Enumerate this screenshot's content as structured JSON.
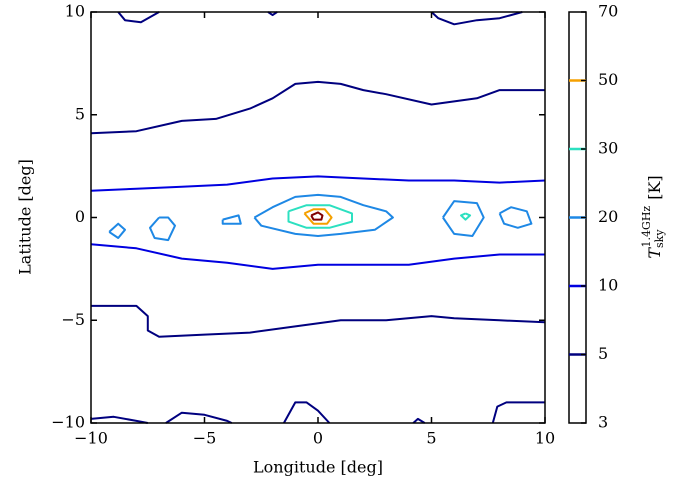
{
  "chart_data": {
    "type": "contour",
    "xlabel": "Longitude [deg]",
    "ylabel": "Latitude [deg]",
    "xlim": [
      -10,
      10
    ],
    "ylim": [
      -10,
      10
    ],
    "xticks": [
      {
        "value": -10,
        "label": "−10"
      },
      {
        "value": -5,
        "label": "−5"
      },
      0,
      5,
      10
    ],
    "yticks": [
      {
        "value": -10,
        "label": "−10"
      },
      {
        "value": -5,
        "label": "−5"
      },
      0,
      5,
      10
    ],
    "colorbar": {
      "symbol": "T",
      "subscript": "sky",
      "superscript": "1.4GHz",
      "unit": "[K]",
      "ticks": [
        3,
        5,
        10,
        20,
        30,
        50,
        70
      ]
    },
    "levels": [
      5,
      10,
      20,
      30,
      50,
      70
    ],
    "level_colors": [
      "#00007f",
      "#0000e0",
      "#1e88e5",
      "#2ce0c0",
      "#f5a000",
      "#800000"
    ],
    "contours": [
      {
        "level": 5,
        "x": [
          -10,
          -8,
          -6,
          -4.5,
          -3,
          -2,
          -1,
          0,
          1,
          2,
          3,
          5,
          7,
          8,
          10
        ],
        "y": [
          4.1,
          4.2,
          4.7,
          4.8,
          5.3,
          5.8,
          6.5,
          6.6,
          6.5,
          6.2,
          6.0,
          5.5,
          5.8,
          6.2,
          6.2
        ]
      },
      {
        "level": 5,
        "x": [
          -8.8,
          -8.5,
          -7.8,
          -7
        ],
        "y": [
          10,
          9.6,
          9.5,
          10
        ]
      },
      {
        "level": 5,
        "x": [
          -2.2,
          -2,
          -1.8
        ],
        "y": [
          10,
          9.85,
          10
        ]
      },
      {
        "level": 5,
        "x": [
          5,
          5.3,
          6,
          7,
          8,
          9
        ],
        "y": [
          10,
          9.7,
          9.4,
          9.6,
          9.7,
          10
        ]
      },
      {
        "level": 5,
        "x": [
          -10,
          -8,
          -7.5,
          -7.5,
          -7,
          -5,
          -3,
          -1,
          1,
          3,
          5,
          6,
          8,
          10
        ],
        "y": [
          -4.3,
          -4.3,
          -4.8,
          -5.5,
          -5.8,
          -5.7,
          -5.6,
          -5.3,
          -5.0,
          -5.0,
          -4.8,
          -4.9,
          -5.0,
          -5.1
        ]
      },
      {
        "level": 5,
        "x": [
          -10,
          -9,
          -8,
          -7.5
        ],
        "y": [
          -9.8,
          -9.7,
          -9.9,
          -10
        ]
      },
      {
        "level": 5,
        "x": [
          -6.7,
          -6,
          -5,
          -4,
          -3.8
        ],
        "y": [
          -10,
          -9.5,
          -9.6,
          -9.9,
          -10
        ]
      },
      {
        "level": 5,
        "x": [
          -1.5,
          -1,
          -0.5,
          0,
          0.5
        ],
        "y": [
          -10,
          -9.0,
          -9.0,
          -9.4,
          -10
        ]
      },
      {
        "level": 5,
        "x": [
          4.2,
          4.4,
          4.7
        ],
        "y": [
          -10,
          -9.8,
          -10
        ]
      },
      {
        "level": 5,
        "x": [
          7.7,
          7.9,
          8.3,
          10
        ],
        "y": [
          -10,
          -9.2,
          -9.0,
          -9.0
        ]
      },
      {
        "level": 10,
        "x": [
          -10,
          -8,
          -6,
          -4,
          -2,
          0,
          2,
          4,
          6,
          8,
          10
        ],
        "y": [
          1.3,
          1.4,
          1.5,
          1.6,
          1.9,
          2.0,
          1.9,
          1.8,
          1.8,
          1.7,
          1.8
        ]
      },
      {
        "level": 10,
        "x": [
          -10,
          -8,
          -6,
          -4,
          -2,
          0,
          2,
          4,
          6,
          8,
          10
        ],
        "y": [
          -1.3,
          -1.5,
          -2.0,
          -2.2,
          -2.5,
          -2.3,
          -2.3,
          -2.3,
          -2.0,
          -1.8,
          -1.8
        ]
      },
      {
        "level": 20,
        "x": [
          -9.2,
          -8.8,
          -8.5,
          -8.8,
          -9.2
        ],
        "y": [
          -0.7,
          -0.3,
          -0.6,
          -1.0,
          -0.7
        ]
      },
      {
        "level": 20,
        "x": [
          -7,
          -6.6,
          -6.3,
          -6.6,
          -7.2,
          -7.4,
          -7
        ],
        "y": [
          0,
          0,
          -0.4,
          -1.1,
          -1.0,
          -0.5,
          0
        ]
      },
      {
        "level": 20,
        "x": [
          -4.2,
          -3.5,
          -3.4,
          -4.2,
          -4.2
        ],
        "y": [
          -0.1,
          0.1,
          -0.3,
          -0.3,
          -0.1
        ]
      },
      {
        "level": 20,
        "x": [
          -2.8,
          -2,
          -1,
          0,
          1,
          2,
          3,
          3.3,
          2.5,
          1,
          0,
          -1,
          -2.5,
          -2.8
        ],
        "y": [
          0,
          0.5,
          1.0,
          1.1,
          1.0,
          0.6,
          0.3,
          0,
          -0.6,
          -0.8,
          -0.9,
          -0.8,
          -0.4,
          0
        ]
      },
      {
        "level": 20,
        "x": [
          5.5,
          6,
          7,
          7.3,
          6.8,
          6,
          5.5
        ],
        "y": [
          0,
          0.8,
          0.7,
          0,
          -0.9,
          -0.8,
          0
        ]
      },
      {
        "level": 20,
        "x": [
          8,
          8.5,
          9.2,
          9.4,
          8.8,
          8.2,
          8
        ],
        "y": [
          0.2,
          0.5,
          0.3,
          -0.3,
          -0.5,
          -0.3,
          0.2
        ]
      },
      {
        "level": 30,
        "x": [
          -1.3,
          -0.5,
          0.5,
          1.5,
          1.5,
          0.5,
          -0.5,
          -1.3,
          -1.3
        ],
        "y": [
          0.3,
          0.6,
          0.6,
          0.2,
          -0.2,
          -0.5,
          -0.5,
          -0.2,
          0.3
        ]
      },
      {
        "level": 30,
        "x": [
          6.5,
          6.7,
          6.5,
          6.3,
          6.5
        ],
        "y": [
          0.2,
          0.1,
          -0.1,
          0.1,
          0.2
        ]
      },
      {
        "level": 50,
        "x": [
          -0.6,
          -0.2,
          0.3,
          0.6,
          0.4,
          -0.2,
          -0.6
        ],
        "y": [
          0.2,
          0.4,
          0.4,
          0,
          -0.3,
          -0.3,
          0.2
        ]
      },
      {
        "level": 70,
        "x": [
          -0.3,
          0,
          0.2,
          0.15,
          -0.2,
          -0.3
        ],
        "y": [
          0.1,
          0.25,
          0.1,
          -0.1,
          -0.1,
          0.1
        ]
      }
    ]
  }
}
